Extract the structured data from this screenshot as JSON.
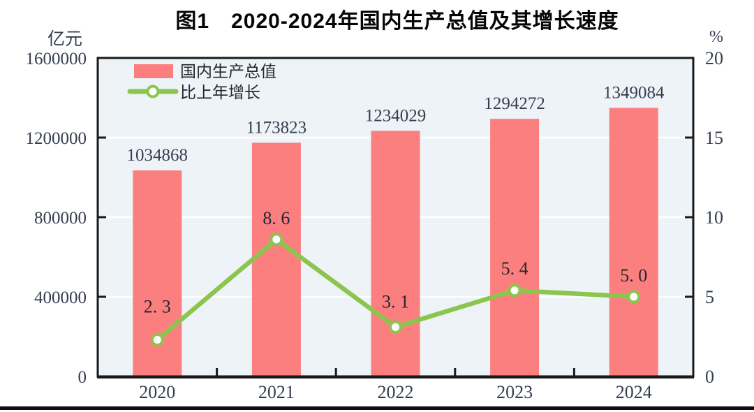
{
  "figure": {
    "title": "图1　2020-2024年国内生产总值及其增长速度",
    "left_axis_unit": "亿元",
    "right_axis_unit": "%"
  },
  "chart_data": {
    "type": "bar",
    "subtype": "bar-line-combo",
    "title": "图1 2020-2024年国内生产总值及其增长速度",
    "categories": [
      "2020",
      "2021",
      "2022",
      "2023",
      "2024"
    ],
    "series": [
      {
        "name": "国内生产总值",
        "type": "bar",
        "axis": "left",
        "unit": "亿元",
        "values": [
          1034868,
          1173823,
          1234029,
          1294272,
          1349084
        ],
        "data_labels": [
          "1034868",
          "1173823",
          "1234029",
          "1294272",
          "1349084"
        ],
        "color": "#FC7F7F"
      },
      {
        "name": "比上年增长",
        "type": "line",
        "axis": "right",
        "unit": "%",
        "values": [
          2.3,
          8.6,
          3.1,
          5.4,
          5.0
        ],
        "data_labels": [
          "2. 3",
          "8. 6",
          "3. 1",
          "5. 4",
          "5. 0"
        ],
        "color": "#8CC54E",
        "marker": "circle-white-fill-green-ring"
      }
    ],
    "left_axis": {
      "label": "亿元",
      "min": 0,
      "max": 1600000,
      "ticks": [
        0,
        400000,
        800000,
        1200000,
        1600000
      ],
      "tick_labels": [
        "0",
        "400000",
        "800000",
        "1200000",
        "1600000"
      ]
    },
    "right_axis": {
      "label": "%",
      "min": 0,
      "max": 20,
      "ticks": [
        0,
        5,
        10,
        15,
        20
      ],
      "tick_labels": [
        "0",
        "5",
        "10",
        "15",
        "20"
      ]
    },
    "legend": {
      "position": "top-left-inside",
      "entries": [
        "国内生产总值",
        "比上年增长"
      ]
    },
    "grid": "horizontal-white-lines",
    "plot_background": "#EDF3F7",
    "border_color": "#1A1A1A"
  }
}
